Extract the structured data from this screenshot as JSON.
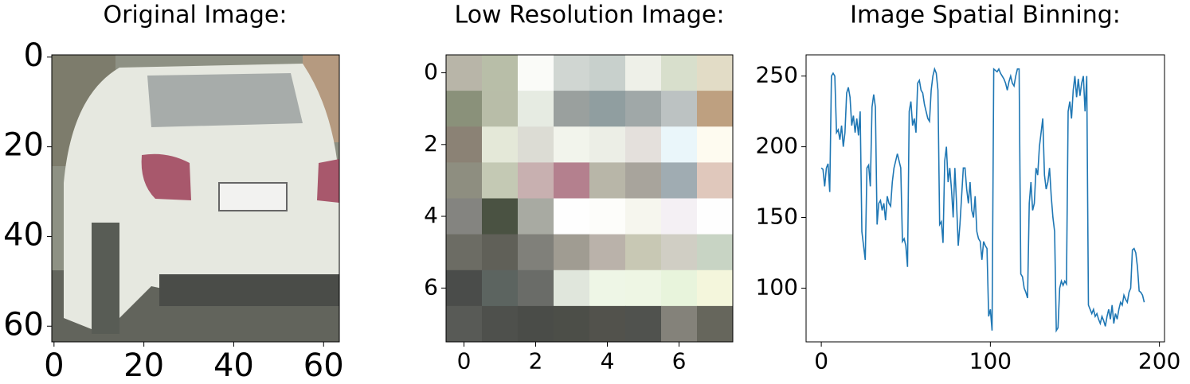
{
  "chart_data": [
    {
      "type": "image",
      "title": "Original Image:",
      "xlim": [
        -0.5,
        63.5
      ],
      "ylim": [
        63.5,
        -0.5
      ],
      "xticks": [
        0,
        20,
        40,
        60
      ],
      "yticks": [
        0,
        20,
        40,
        60
      ]
    },
    {
      "type": "heatmap",
      "title": "Low Resolution Image:",
      "xlim": [
        -0.5,
        7.5
      ],
      "ylim": [
        7.5,
        -0.5
      ],
      "xticks": [
        0,
        2,
        4,
        6
      ],
      "yticks": [
        0,
        2,
        4,
        6
      ],
      "cells": [
        [
          "#b8b5a8",
          "#b8bea8",
          "#fafbf8",
          "#d0d6d2",
          "#c8d0cc",
          "#eef0e8",
          "#d8dfcc",
          "#e2dcc6"
        ],
        [
          "#8a917a",
          "#b8bda8",
          "#e6ebe2",
          "#9aa09e",
          "#909ea0",
          "#a0a8a8",
          "#bcc2c2",
          "#bea080"
        ],
        [
          "#8b8275",
          "#e4e8d8",
          "#dcdcd4",
          "#f2f4ec",
          "#eceee6",
          "#e4e0dc",
          "#eaf6fa",
          "#fefbf0"
        ],
        [
          "#8e8e80",
          "#c4c9b4",
          "#c8b0b0",
          "#b4808e",
          "#b8b6a8",
          "#a8a49c",
          "#a0acb2",
          "#e0c8bc"
        ],
        [
          "#848480",
          "#4a5242",
          "#a8aaa2",
          "#fefefe",
          "#fdfdfa",
          "#f6f6ee",
          "#f4f0f4",
          "#fefefe"
        ],
        [
          "#6c6c64",
          "#606058",
          "#80807a",
          "#a09c92",
          "#bab2aa",
          "#c8c8b4",
          "#d0cec4",
          "#c8d4c4"
        ],
        [
          "#4a4c4a",
          "#5c6460",
          "#6a6c68",
          "#e0e6dc",
          "#eef6e6",
          "#eef6e4",
          "#e8f4dc",
          "#f4f6dc"
        ],
        [
          "#585a56",
          "#4e504c",
          "#4a4c48",
          "#4c4e48",
          "#52524c",
          "#50524e",
          "#84827a",
          "#66665c"
        ]
      ]
    },
    {
      "type": "line",
      "title": "Image Spatial Binning:",
      "color": "#1f77b4",
      "xlim": [
        -9,
        203
      ],
      "ylim": [
        62,
        265
      ],
      "xticks": [
        0,
        100,
        200
      ],
      "yticks": [
        100,
        150,
        200,
        250
      ],
      "values": [
        185,
        184,
        172,
        185,
        188,
        168,
        250,
        252,
        250,
        210,
        212,
        205,
        215,
        200,
        210,
        238,
        242,
        235,
        215,
        222,
        210,
        220,
        208,
        225,
        140,
        130,
        120,
        185,
        187,
        172,
        228,
        237,
        228,
        145,
        160,
        162,
        155,
        160,
        148,
        165,
        160,
        158,
        175,
        185,
        190,
        195,
        190,
        185,
        133,
        135,
        130,
        115,
        225,
        232,
        215,
        220,
        210,
        245,
        247,
        240,
        238,
        230,
        225,
        220,
        218,
        240,
        250,
        255,
        252,
        240,
        145,
        147,
        132,
        190,
        200,
        175,
        185,
        170,
        150,
        185,
        160,
        130,
        145,
        165,
        185,
        185,
        170,
        160,
        175,
        155,
        150,
        165,
        140,
        135,
        133,
        120,
        133,
        130,
        128,
        80,
        85,
        70,
        255,
        254,
        253,
        255,
        252,
        250,
        248,
        245,
        240,
        246,
        250,
        245,
        243,
        250,
        255,
        255,
        110,
        108,
        100,
        97,
        93,
        160,
        175,
        155,
        160,
        185,
        180,
        200,
        210,
        220,
        180,
        170,
        175,
        185,
        165,
        150,
        140,
        70,
        72,
        100,
        105,
        102,
        105,
        103,
        225,
        232,
        220,
        240,
        250,
        235,
        248,
        236,
        245,
        250,
        225,
        250,
        88,
        85,
        82,
        85,
        80,
        82,
        78,
        75,
        80,
        77,
        73,
        80,
        85,
        78,
        88,
        75,
        82,
        78,
        85,
        90,
        88,
        95,
        92,
        90,
        97,
        100,
        127,
        128,
        125,
        115,
        98,
        97,
        95,
        90
      ]
    }
  ]
}
